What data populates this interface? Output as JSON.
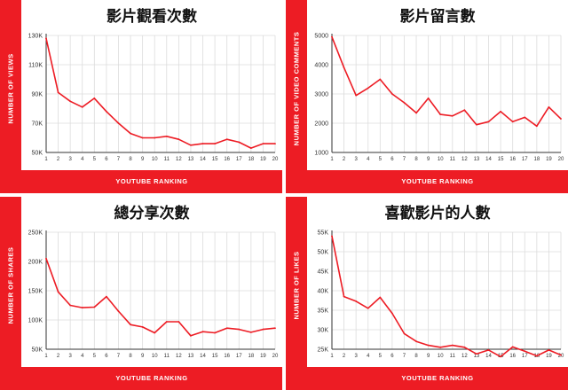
{
  "chart_data": [
    {
      "type": "line",
      "title": "影片觀看次數",
      "xlabel": "YOUTUBE RANKING",
      "ylabel": "NUMBER OF VIEWS",
      "x": [
        1,
        2,
        3,
        4,
        5,
        6,
        7,
        8,
        9,
        10,
        11,
        12,
        13,
        14,
        15,
        16,
        17,
        18,
        19,
        20
      ],
      "yticks": [
        "50K",
        "70K",
        "90K",
        "110K",
        "130K"
      ],
      "ytick_values": [
        50000,
        70000,
        90000,
        110000,
        130000
      ],
      "ylim": [
        50000,
        130000
      ],
      "grid": true,
      "line_color": "#ed1c24",
      "values": [
        128000,
        91000,
        85000,
        81000,
        87000,
        78000,
        70000,
        63000,
        60000,
        60000,
        61000,
        59000,
        55000,
        56000,
        56000,
        59000,
        57000,
        53000,
        56000,
        56000
      ]
    },
    {
      "type": "line",
      "title": "影片留言數",
      "xlabel": "YOUTUBE RANKING",
      "ylabel": "NUMBER OF VIDEO COMMENTS",
      "x": [
        1,
        2,
        3,
        4,
        5,
        6,
        7,
        8,
        9,
        10,
        11,
        12,
        13,
        14,
        15,
        16,
        17,
        18,
        19,
        20
      ],
      "yticks": [
        "1000",
        "2000",
        "3000",
        "4000",
        "5000"
      ],
      "ytick_values": [
        1000,
        2000,
        3000,
        4000,
        5000
      ],
      "ylim": [
        1000,
        5000
      ],
      "grid": true,
      "line_color": "#ed1c24",
      "values": [
        4950,
        3900,
        2950,
        3200,
        3500,
        3000,
        2700,
        2350,
        2850,
        2300,
        2250,
        2450,
        1950,
        2050,
        2400,
        2050,
        2200,
        1900,
        2550,
        2150
      ]
    },
    {
      "type": "line",
      "title": "總分享次數",
      "xlabel": "YOUTUBE RANKING",
      "ylabel": "NUMBER OF SHARES",
      "x": [
        1,
        2,
        3,
        4,
        5,
        6,
        7,
        8,
        9,
        10,
        11,
        12,
        13,
        14,
        15,
        16,
        17,
        18,
        19,
        20
      ],
      "yticks": [
        "50K",
        "100K",
        "150K",
        "200K",
        "250K"
      ],
      "ytick_values": [
        50000,
        100000,
        150000,
        200000,
        250000
      ],
      "ylim": [
        50000,
        250000
      ],
      "grid": true,
      "line_color": "#ed1c24",
      "values": [
        205000,
        148000,
        125000,
        121000,
        122000,
        140000,
        115000,
        92000,
        88000,
        78000,
        97000,
        97000,
        73000,
        80000,
        78000,
        86000,
        84000,
        79000,
        84000,
        86000
      ]
    },
    {
      "type": "line",
      "title": "喜歡影片的人數",
      "xlabel": "YOUTUBE RANKING",
      "ylabel": "NUMBER OF LIKES",
      "x": [
        1,
        2,
        3,
        4,
        5,
        6,
        7,
        8,
        9,
        10,
        11,
        12,
        13,
        14,
        15,
        16,
        17,
        18,
        19,
        20
      ],
      "yticks": [
        "25K",
        "30K",
        "35K",
        "40K",
        "45K",
        "50K",
        "55K"
      ],
      "ytick_values": [
        25000,
        30000,
        35000,
        40000,
        45000,
        50000,
        55000
      ],
      "ylim": [
        25000,
        55000
      ],
      "grid": true,
      "line_color": "#ed1c24",
      "values": [
        54000,
        38500,
        37300,
        35500,
        38300,
        34200,
        29000,
        27000,
        26000,
        25500,
        26000,
        25500,
        23800,
        24800,
        23100,
        25600,
        24500,
        23300,
        24800,
        23500
      ]
    }
  ]
}
